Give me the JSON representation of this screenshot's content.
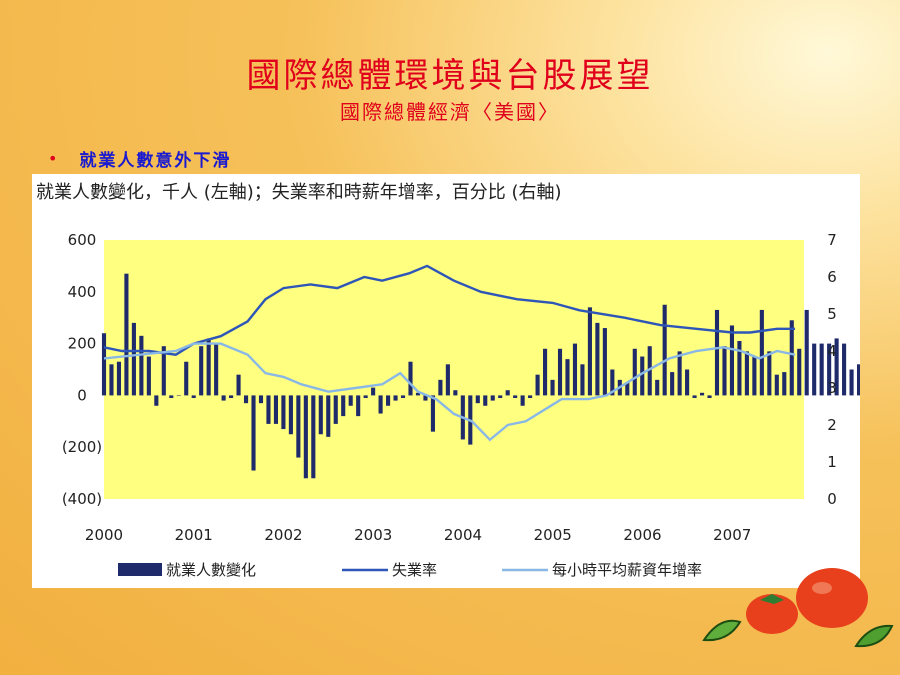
{
  "slide": {
    "title": "國際總體環境與台股展望",
    "subtitle": "國際總體經濟〈美國〉",
    "bullet": "就業人數意外下滑"
  },
  "colors": {
    "title": "#e0001b",
    "bullet_text": "#1a1ad0",
    "plot_bg": "#ffff80",
    "bars": "#1f2a6b",
    "unemployment_line": "#2e56b8",
    "wage_line": "#8ab8e6"
  },
  "chart_data": {
    "type": "bar",
    "title": "就業人數變化，千人 (左軸)；失業率和時薪年增率，百分比 (右軸)",
    "x_ticks": [
      "2000",
      "2001",
      "2002",
      "2003",
      "2004",
      "2005",
      "2006",
      "2007"
    ],
    "xlim": [
      2000.0,
      2007.8
    ],
    "y_left_ticks": [
      "600",
      "400",
      "200",
      "0",
      "(200)",
      "(400)"
    ],
    "y_left_lim": [
      -400,
      600
    ],
    "y_right_ticks": [
      "7",
      "6",
      "5",
      "4",
      "3",
      "2",
      "1",
      "0"
    ],
    "y_right_lim": [
      0,
      7
    ],
    "grid": false,
    "legend_position": "bottom",
    "series": [
      {
        "name": "就業人數變化",
        "kind": "bar",
        "axis": "left",
        "start": 2000.0,
        "step": 0.0833,
        "values": [
          240,
          120,
          130,
          470,
          280,
          230,
          150,
          -40,
          190,
          -10,
          0,
          130,
          -10,
          190,
          220,
          200,
          -20,
          -10,
          80,
          -30,
          -290,
          -30,
          -110,
          -110,
          -130,
          -150,
          -240,
          -320,
          -320,
          -150,
          -160,
          -110,
          -80,
          -40,
          -80,
          -10,
          30,
          -70,
          -40,
          -20,
          -10,
          130,
          10,
          -20,
          -140,
          60,
          120,
          20,
          -170,
          -190,
          -30,
          -40,
          -20,
          -10,
          20,
          -10,
          -40,
          -10,
          80,
          180,
          60,
          180,
          140,
          200,
          120,
          340,
          280,
          260,
          100,
          60,
          50,
          180,
          150,
          190,
          60,
          350,
          90,
          170,
          100,
          -10,
          10,
          -10,
          330,
          190,
          270,
          210,
          170,
          150,
          330,
          170,
          80,
          90,
          290,
          180,
          330,
          200,
          200,
          200,
          220,
          200,
          100,
          120,
          70,
          90,
          120,
          170,
          200,
          120,
          200,
          130,
          90,
          150,
          220,
          110,
          60,
          170,
          140,
          150,
          180,
          60,
          160,
          70,
          70,
          0
        ]
      },
      {
        "name": "失業率",
        "kind": "line",
        "axis": "right",
        "points": [
          [
            2000.0,
            4.1
          ],
          [
            2000.2,
            4.0
          ],
          [
            2000.5,
            4.0
          ],
          [
            2000.8,
            3.9
          ],
          [
            2001.0,
            4.2
          ],
          [
            2001.3,
            4.4
          ],
          [
            2001.6,
            4.8
          ],
          [
            2001.8,
            5.4
          ],
          [
            2002.0,
            5.7
          ],
          [
            2002.3,
            5.8
          ],
          [
            2002.6,
            5.7
          ],
          [
            2002.9,
            6.0
          ],
          [
            2003.1,
            5.9
          ],
          [
            2003.4,
            6.1
          ],
          [
            2003.6,
            6.3
          ],
          [
            2003.9,
            5.9
          ],
          [
            2004.2,
            5.6
          ],
          [
            2004.6,
            5.4
          ],
          [
            2005.0,
            5.3
          ],
          [
            2005.3,
            5.1
          ],
          [
            2005.8,
            4.9
          ],
          [
            2006.2,
            4.7
          ],
          [
            2006.6,
            4.6
          ],
          [
            2007.0,
            4.5
          ],
          [
            2007.2,
            4.5
          ],
          [
            2007.5,
            4.6
          ],
          [
            2007.7,
            4.6
          ]
        ]
      },
      {
        "name": "每小時平均薪資年增率",
        "kind": "line",
        "axis": "right",
        "points": [
          [
            2000.0,
            3.8
          ],
          [
            2000.4,
            3.9
          ],
          [
            2000.8,
            4.0
          ],
          [
            2001.0,
            4.2
          ],
          [
            2001.3,
            4.2
          ],
          [
            2001.6,
            3.9
          ],
          [
            2001.8,
            3.4
          ],
          [
            2002.0,
            3.3
          ],
          [
            2002.2,
            3.1
          ],
          [
            2002.5,
            2.9
          ],
          [
            2002.8,
            3.0
          ],
          [
            2003.1,
            3.1
          ],
          [
            2003.3,
            3.4
          ],
          [
            2003.5,
            2.9
          ],
          [
            2003.7,
            2.7
          ],
          [
            2003.9,
            2.3
          ],
          [
            2004.1,
            2.1
          ],
          [
            2004.3,
            1.6
          ],
          [
            2004.5,
            2.0
          ],
          [
            2004.7,
            2.1
          ],
          [
            2004.9,
            2.4
          ],
          [
            2005.1,
            2.7
          ],
          [
            2005.4,
            2.7
          ],
          [
            2005.6,
            2.8
          ],
          [
            2005.8,
            3.1
          ],
          [
            2006.0,
            3.4
          ],
          [
            2006.3,
            3.8
          ],
          [
            2006.6,
            4.0
          ],
          [
            2006.9,
            4.1
          ],
          [
            2007.1,
            4.0
          ],
          [
            2007.3,
            3.8
          ],
          [
            2007.5,
            4.0
          ],
          [
            2007.7,
            3.9
          ]
        ]
      }
    ]
  }
}
